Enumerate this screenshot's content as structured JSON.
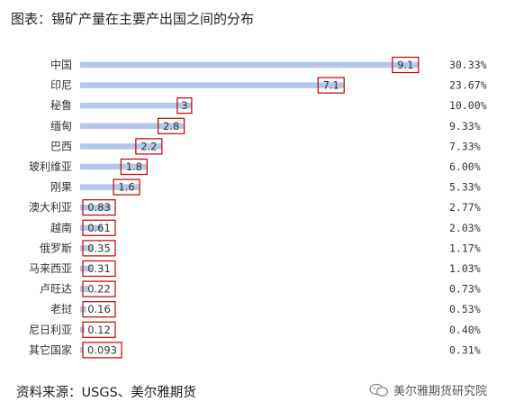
{
  "title": "图表：锡矿产量在主要产出国之间的分布",
  "source": "资料来源：USGS、美尔雅期货",
  "watermark": "美尔雅期货研究院",
  "colors": {
    "bar": "#b4c7e7",
    "highlight_box": "#c00000"
  },
  "chart_data": {
    "type": "bar",
    "orientation": "horizontal",
    "categories": [
      "中国",
      "印尼",
      "秘鲁",
      "缅甸",
      "巴西",
      "玻利维亚",
      "刚果",
      "澳大利亚",
      "越南",
      "俄罗斯",
      "马来西亚",
      "卢旺达",
      "老挝",
      "尼日利亚",
      "其它国家"
    ],
    "values": [
      9.1,
      7.1,
      3,
      2.8,
      2.2,
      1.8,
      1.6,
      0.83,
      0.61,
      0.35,
      0.31,
      0.22,
      0.16,
      0.12,
      0.093
    ],
    "value_labels": [
      "9.1",
      "7.1",
      "3",
      "2.8",
      "2.2",
      "1.8",
      "1.6",
      "0.83",
      "0.61",
      "0.35",
      "0.31",
      "0.22",
      "0.16",
      "0.12",
      "0.093"
    ],
    "shares": [
      "30.33%",
      "23.67%",
      "10.00%",
      "9.33%",
      "7.33%",
      "6.00%",
      "5.33%",
      "2.77%",
      "2.03%",
      "1.17%",
      "1.03%",
      "0.73%",
      "0.53%",
      "0.40%",
      "0.31%"
    ],
    "xlim": [
      0,
      9.8
    ],
    "grid": false,
    "legend": "none"
  }
}
